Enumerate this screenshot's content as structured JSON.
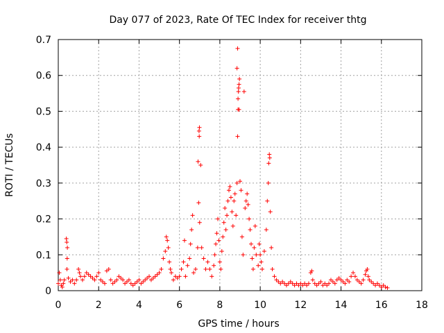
{
  "chart_data": {
    "type": "scatter",
    "title": "Day 077 of 2023, Rate Of TEC Index for receiver thtg",
    "xlabel": "GPS time / hours",
    "ylabel": "ROTI / TECUs",
    "xlim": [
      0,
      18
    ],
    "ylim": [
      0,
      0.7
    ],
    "x_ticks": [
      0,
      2,
      4,
      6,
      8,
      10,
      12,
      14,
      16,
      18
    ],
    "y_ticks": [
      0,
      0.1,
      0.2,
      0.3,
      0.4,
      0.5,
      0.6,
      0.7
    ],
    "x_tick_labels": [
      "0",
      "2",
      "4",
      "6",
      "8",
      "10",
      "12",
      "14",
      "16",
      "18"
    ],
    "y_tick_labels": [
      "0",
      "0.1",
      "0.2",
      "0.3",
      "0.4",
      "0.5",
      "0.6",
      "0.7"
    ],
    "grid": true,
    "marker": "+",
    "color": "#ff0000",
    "series": [
      {
        "points": [
          [
            0.0,
            0.02
          ],
          [
            0.05,
            0.05
          ],
          [
            0.1,
            0.03
          ],
          [
            0.15,
            0.015
          ],
          [
            0.2,
            0.01
          ],
          [
            0.25,
            0.02
          ],
          [
            0.3,
            0.03
          ],
          [
            0.4,
            0.145
          ],
          [
            0.42,
            0.135
          ],
          [
            0.45,
            0.12
          ],
          [
            0.44,
            0.09
          ],
          [
            0.43,
            0.06
          ],
          [
            0.5,
            0.035
          ],
          [
            0.6,
            0.025
          ],
          [
            0.7,
            0.03
          ],
          [
            0.8,
            0.02
          ],
          [
            0.9,
            0.03
          ],
          [
            1.0,
            0.06
          ],
          [
            1.05,
            0.05
          ],
          [
            1.1,
            0.04
          ],
          [
            1.2,
            0.03
          ],
          [
            1.3,
            0.04
          ],
          [
            1.4,
            0.05
          ],
          [
            1.5,
            0.045
          ],
          [
            1.6,
            0.04
          ],
          [
            1.7,
            0.035
          ],
          [
            1.8,
            0.03
          ],
          [
            1.9,
            0.04
          ],
          [
            2.0,
            0.05
          ],
          [
            2.1,
            0.03
          ],
          [
            2.2,
            0.025
          ],
          [
            2.3,
            0.02
          ],
          [
            2.4,
            0.055
          ],
          [
            2.5,
            0.06
          ],
          [
            2.6,
            0.03
          ],
          [
            2.7,
            0.02
          ],
          [
            2.8,
            0.025
          ],
          [
            2.9,
            0.03
          ],
          [
            3.0,
            0.04
          ],
          [
            3.1,
            0.035
          ],
          [
            3.2,
            0.03
          ],
          [
            3.3,
            0.02
          ],
          [
            3.4,
            0.025
          ],
          [
            3.5,
            0.03
          ],
          [
            3.6,
            0.02
          ],
          [
            3.7,
            0.015
          ],
          [
            3.8,
            0.02
          ],
          [
            3.9,
            0.025
          ],
          [
            4.0,
            0.03
          ],
          [
            4.1,
            0.02
          ],
          [
            4.2,
            0.025
          ],
          [
            4.3,
            0.03
          ],
          [
            4.4,
            0.035
          ],
          [
            4.5,
            0.04
          ],
          [
            4.6,
            0.03
          ],
          [
            4.7,
            0.035
          ],
          [
            4.8,
            0.04
          ],
          [
            4.9,
            0.045
          ],
          [
            5.0,
            0.05
          ],
          [
            5.1,
            0.06
          ],
          [
            5.2,
            0.09
          ],
          [
            5.3,
            0.11
          ],
          [
            5.35,
            0.15
          ],
          [
            5.4,
            0.14
          ],
          [
            5.45,
            0.12
          ],
          [
            5.5,
            0.08
          ],
          [
            5.55,
            0.06
          ],
          [
            5.6,
            0.05
          ],
          [
            5.7,
            0.03
          ],
          [
            5.8,
            0.04
          ],
          [
            5.9,
            0.035
          ],
          [
            6.0,
            0.04
          ],
          [
            6.1,
            0.06
          ],
          [
            6.2,
            0.08
          ],
          [
            6.25,
            0.14
          ],
          [
            6.3,
            0.04
          ],
          [
            6.4,
            0.07
          ],
          [
            6.5,
            0.09
          ],
          [
            6.55,
            0.13
          ],
          [
            6.6,
            0.17
          ],
          [
            6.65,
            0.21
          ],
          [
            6.7,
            0.05
          ],
          [
            6.8,
            0.06
          ],
          [
            6.9,
            0.12
          ],
          [
            6.95,
            0.245
          ],
          [
            6.92,
            0.36
          ],
          [
            6.98,
            0.43
          ],
          [
            6.97,
            0.445
          ],
          [
            6.99,
            0.455
          ],
          [
            7.05,
            0.35
          ],
          [
            7.0,
            0.19
          ],
          [
            7.1,
            0.12
          ],
          [
            7.2,
            0.09
          ],
          [
            7.3,
            0.06
          ],
          [
            7.4,
            0.08
          ],
          [
            7.5,
            0.06
          ],
          [
            7.6,
            0.04
          ],
          [
            7.7,
            0.07
          ],
          [
            7.75,
            0.1
          ],
          [
            7.8,
            0.13
          ],
          [
            7.85,
            0.16
          ],
          [
            7.9,
            0.2
          ],
          [
            7.95,
            0.14
          ],
          [
            8.0,
            0.08
          ],
          [
            8.05,
            0.06
          ],
          [
            8.1,
            0.11
          ],
          [
            8.15,
            0.15
          ],
          [
            8.2,
            0.19
          ],
          [
            8.25,
            0.23
          ],
          [
            8.3,
            0.17
          ],
          [
            8.35,
            0.21
          ],
          [
            8.4,
            0.25
          ],
          [
            8.45,
            0.28
          ],
          [
            8.5,
            0.29
          ],
          [
            8.55,
            0.26
          ],
          [
            8.6,
            0.22
          ],
          [
            8.65,
            0.18
          ],
          [
            8.7,
            0.25
          ],
          [
            8.75,
            0.27
          ],
          [
            8.8,
            0.21
          ],
          [
            8.85,
            0.3
          ],
          [
            8.88,
            0.43
          ],
          [
            8.9,
            0.505
          ],
          [
            8.9,
            0.535
          ],
          [
            8.92,
            0.555
          ],
          [
            8.93,
            0.565
          ],
          [
            8.95,
            0.575
          ],
          [
            8.97,
            0.59
          ],
          [
            8.85,
            0.62
          ],
          [
            8.88,
            0.675
          ],
          [
            8.95,
            0.505
          ],
          [
            9.0,
            0.305
          ],
          [
            9.05,
            0.28
          ],
          [
            9.1,
            0.15
          ],
          [
            9.15,
            0.1
          ],
          [
            9.2,
            0.555
          ],
          [
            9.25,
            0.23
          ],
          [
            9.3,
            0.25
          ],
          [
            9.35,
            0.27
          ],
          [
            9.4,
            0.24
          ],
          [
            9.45,
            0.2
          ],
          [
            9.5,
            0.17
          ],
          [
            9.55,
            0.13
          ],
          [
            9.6,
            0.09
          ],
          [
            9.65,
            0.06
          ],
          [
            9.7,
            0.12
          ],
          [
            9.75,
            0.18
          ],
          [
            9.8,
            0.1
          ],
          [
            9.9,
            0.07
          ],
          [
            9.95,
            0.13
          ],
          [
            10.0,
            0.1
          ],
          [
            10.05,
            0.08
          ],
          [
            10.1,
            0.06
          ],
          [
            10.2,
            0.11
          ],
          [
            10.3,
            0.17
          ],
          [
            10.35,
            0.25
          ],
          [
            10.4,
            0.3
          ],
          [
            10.42,
            0.355
          ],
          [
            10.45,
            0.38
          ],
          [
            10.47,
            0.37
          ],
          [
            10.5,
            0.22
          ],
          [
            10.55,
            0.12
          ],
          [
            10.6,
            0.06
          ],
          [
            10.7,
            0.04
          ],
          [
            10.8,
            0.03
          ],
          [
            10.9,
            0.025
          ],
          [
            11.0,
            0.02
          ],
          [
            11.1,
            0.025
          ],
          [
            11.2,
            0.02
          ],
          [
            11.3,
            0.015
          ],
          [
            11.4,
            0.02
          ],
          [
            11.5,
            0.025
          ],
          [
            11.6,
            0.02
          ],
          [
            11.7,
            0.015
          ],
          [
            11.8,
            0.02
          ],
          [
            11.9,
            0.015
          ],
          [
            12.0,
            0.02
          ],
          [
            12.1,
            0.015
          ],
          [
            12.2,
            0.02
          ],
          [
            12.3,
            0.015
          ],
          [
            12.4,
            0.02
          ],
          [
            12.5,
            0.05
          ],
          [
            12.55,
            0.055
          ],
          [
            12.6,
            0.03
          ],
          [
            12.7,
            0.02
          ],
          [
            12.8,
            0.015
          ],
          [
            12.9,
            0.02
          ],
          [
            13.0,
            0.025
          ],
          [
            13.1,
            0.015
          ],
          [
            13.2,
            0.02
          ],
          [
            13.3,
            0.015
          ],
          [
            13.4,
            0.02
          ],
          [
            13.5,
            0.03
          ],
          [
            13.6,
            0.025
          ],
          [
            13.7,
            0.02
          ],
          [
            13.8,
            0.03
          ],
          [
            13.9,
            0.035
          ],
          [
            14.0,
            0.03
          ],
          [
            14.1,
            0.025
          ],
          [
            14.2,
            0.02
          ],
          [
            14.3,
            0.03
          ],
          [
            14.4,
            0.025
          ],
          [
            14.5,
            0.04
          ],
          [
            14.6,
            0.05
          ],
          [
            14.7,
            0.04
          ],
          [
            14.8,
            0.03
          ],
          [
            14.9,
            0.025
          ],
          [
            15.0,
            0.02
          ],
          [
            15.1,
            0.03
          ],
          [
            15.2,
            0.045
          ],
          [
            15.25,
            0.055
          ],
          [
            15.3,
            0.06
          ],
          [
            15.35,
            0.04
          ],
          [
            15.4,
            0.03
          ],
          [
            15.5,
            0.025
          ],
          [
            15.6,
            0.02
          ],
          [
            15.7,
            0.015
          ],
          [
            15.8,
            0.02
          ],
          [
            15.9,
            0.015
          ],
          [
            16.0,
            0.01
          ],
          [
            16.1,
            0.015
          ],
          [
            16.2,
            0.01
          ],
          [
            16.3,
            0.008
          ]
        ]
      }
    ]
  }
}
